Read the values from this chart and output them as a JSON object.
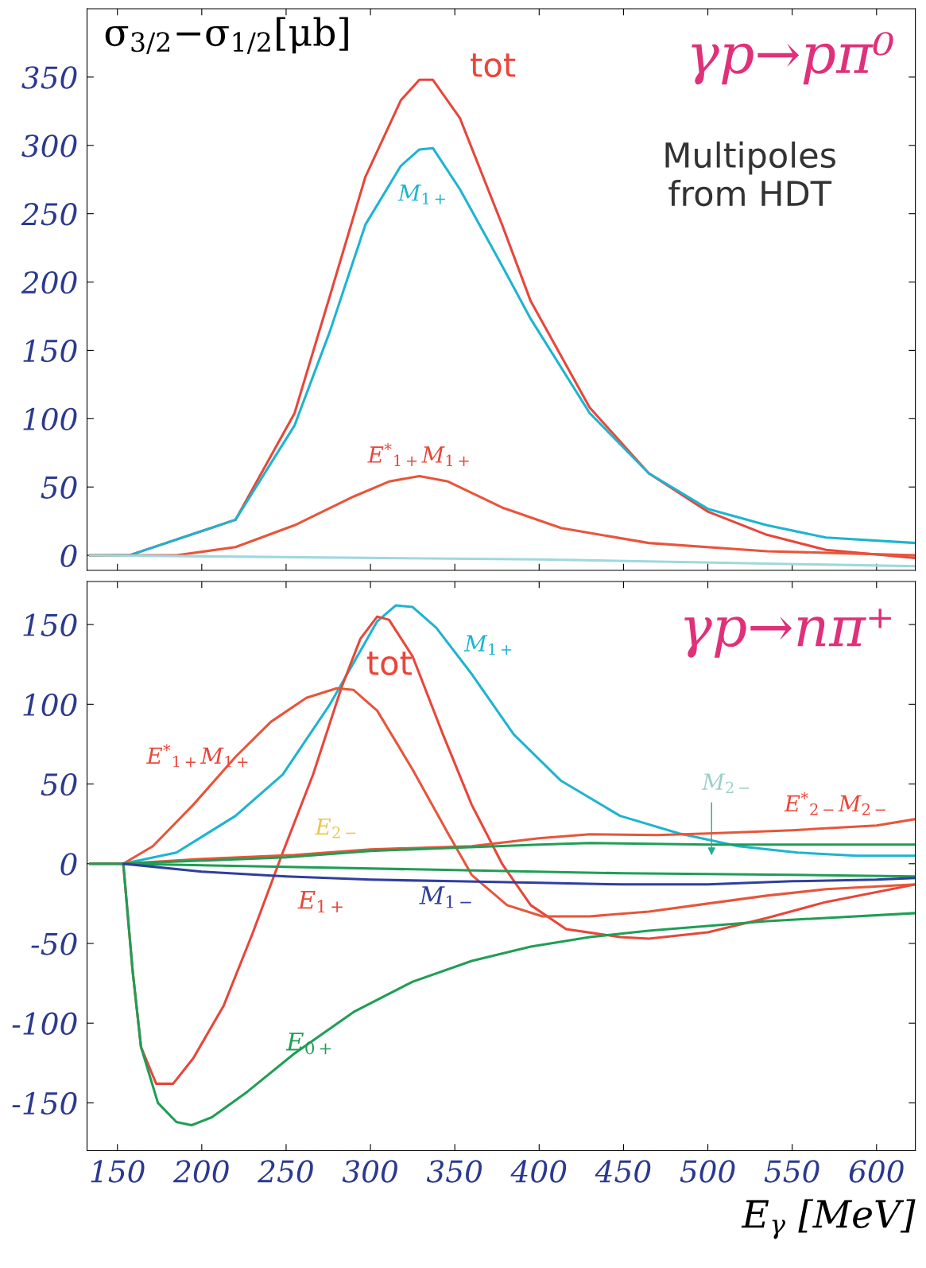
{
  "chart_data": [
    {
      "type": "line",
      "title": "γp→pπ⁰",
      "ylabel": "σ$_{3/2}$−σ$_{1/2}$[μb]",
      "xlim": [
        132,
        623
      ],
      "ylim": [
        -11,
        400
      ],
      "xticks": [
        150,
        200,
        250,
        300,
        350,
        400,
        450,
        500,
        550,
        600
      ],
      "yticks": [
        0,
        50,
        100,
        150,
        200,
        250,
        300,
        350
      ],
      "tick_labels": "y",
      "series": [
        {
          "color": "#e8463a",
          "x": [
            134,
            157,
            220,
            255,
            276,
            297,
            318,
            329,
            337,
            353,
            378,
            395,
            430,
            465,
            500,
            535,
            570,
            623
          ],
          "values": [
            0,
            0,
            26,
            104,
            190,
            277,
            333,
            348,
            348,
            320,
            242,
            186,
            108,
            60,
            32,
            15,
            4,
            -2
          ]
        },
        {
          "color": "#1eb4d0",
          "x": [
            134,
            157,
            220,
            255,
            276,
            297,
            318,
            329,
            337,
            353,
            378,
            395,
            430,
            465,
            500,
            535,
            570,
            623
          ],
          "values": [
            0,
            0,
            26,
            95,
            164,
            242,
            285,
            297,
            298,
            268,
            212,
            173,
            104,
            60,
            34,
            22,
            13,
            9
          ]
        },
        {
          "color": "#e8553a",
          "x": [
            134,
            185,
            220,
            255,
            290,
            311,
            329,
            346,
            378,
            413,
            465,
            535,
            623
          ],
          "values": [
            0,
            0,
            6,
            22,
            43,
            54,
            58,
            54,
            35,
            20,
            9,
            3,
            0
          ]
        },
        {
          "color": "#9fd8dc",
          "x": [
            134,
            400,
            623
          ],
          "values": [
            0,
            -3,
            -8
          ]
        }
      ],
      "annotations": [
        "tot",
        "M$_{1+}$",
        "E$^{*}$$_{1+}$M$_{1+}$",
        "Multipoles\nfrom HDT"
      ]
    },
    {
      "type": "line",
      "title": "γp→nπ⁺",
      "xlabel": "E$_{γ}$ [MeV]",
      "xlim": [
        132,
        623
      ],
      "ylim": [
        -180,
        177
      ],
      "xticks": [
        150,
        200,
        250,
        300,
        350,
        400,
        450,
        500,
        550,
        600
      ],
      "yticks": [
        -150,
        -100,
        -50,
        0,
        50,
        100,
        150
      ],
      "series": [
        {
          "color": "#1eb4d0",
          "x": [
            134,
            153.5,
            185,
            220,
            248,
            276,
            290,
            304,
            315,
            325,
            339,
            360,
            385,
            413,
            448,
            483,
            518,
            553,
            588,
            623
          ],
          "values": [
            0,
            0,
            7,
            30,
            56,
            100,
            126,
            152,
            162,
            161,
            148,
            119,
            81,
            52,
            30,
            19,
            11,
            7,
            5,
            5
          ]
        },
        {
          "color": "#e8463a",
          "x": [
            134,
            153.5,
            159,
            164,
            173,
            183,
            195,
            213,
            230,
            248,
            266,
            283,
            294,
            304,
            311,
            325,
            343,
            360,
            378,
            395,
            416,
            448,
            465,
            500,
            535,
            570,
            623
          ],
          "values": [
            0,
            0,
            -67,
            -115,
            -138,
            -138,
            -122,
            -89,
            -44,
            7,
            56,
            111,
            141,
            155,
            153,
            130,
            81,
            37,
            0,
            -26,
            -41,
            -46,
            -47,
            -43,
            -34,
            -24,
            -13
          ]
        },
        {
          "color": "#e8553a",
          "x": [
            134,
            153.5,
            171,
            195,
            220,
            241,
            262,
            280,
            290,
            304,
            325,
            346,
            360,
            381,
            402,
            430,
            465,
            500,
            535,
            570,
            623
          ],
          "values": [
            0,
            0,
            11,
            37,
            67,
            89,
            104,
            110,
            109,
            96,
            59,
            19,
            -7,
            -26,
            -33,
            -33,
            -30,
            -25,
            -20,
            -16,
            -13
          ]
        },
        {
          "color": "#1f9e55",
          "x": [
            134,
            153.5,
            159,
            164,
            174,
            185,
            194,
            206,
            227,
            255,
            290,
            325,
            360,
            395,
            430,
            465,
            500,
            535,
            570,
            623
          ],
          "values": [
            0,
            0,
            -67,
            -115,
            -150,
            -162,
            -164,
            -159,
            -143,
            -119,
            -93,
            -74,
            -61,
            -52,
            -46,
            -42,
            -39,
            -36,
            -34,
            -31
          ]
        },
        {
          "color": "#e8553a",
          "x": [
            153.5,
            200,
            255,
            300,
            360,
            400,
            430,
            470,
            500,
            550,
            600,
            623
          ],
          "values": [
            0,
            3,
            5.5,
            9,
            11,
            16,
            18.5,
            18,
            19,
            21,
            24,
            28
          ]
        },
        {
          "color": "#1f9e55",
          "x": [
            153.5,
            250,
            300,
            350,
            400,
            430,
            500,
            550,
            623
          ],
          "values": [
            0,
            4,
            8,
            10,
            12,
            13,
            12,
            12,
            12
          ]
        },
        {
          "color": "#1f9e55",
          "x": [
            153.5,
            250,
            350,
            450,
            550,
            623
          ],
          "values": [
            0,
            -2,
            -4,
            -6,
            -7,
            -8
          ]
        },
        {
          "color": "#2f3f9e",
          "x": [
            153.5,
            200,
            250,
            300,
            350,
            400,
            450,
            500,
            550,
            600,
            623
          ],
          "values": [
            0,
            -5,
            -8,
            -10,
            -11,
            -12,
            -13,
            -13,
            -11,
            -10,
            -9
          ]
        }
      ],
      "annotations": [
        "M$_{1+}$",
        "tot",
        "E$^{*}$$_{1+}$M$_{1+}$",
        "E$_{1+}$",
        "M$_{1−}$",
        "E$_{0+}$",
        "E$_{2−}$",
        "M$_{2−}$",
        "E$^{*}$$_{2−}$M$_{2−}$"
      ]
    }
  ]
}
